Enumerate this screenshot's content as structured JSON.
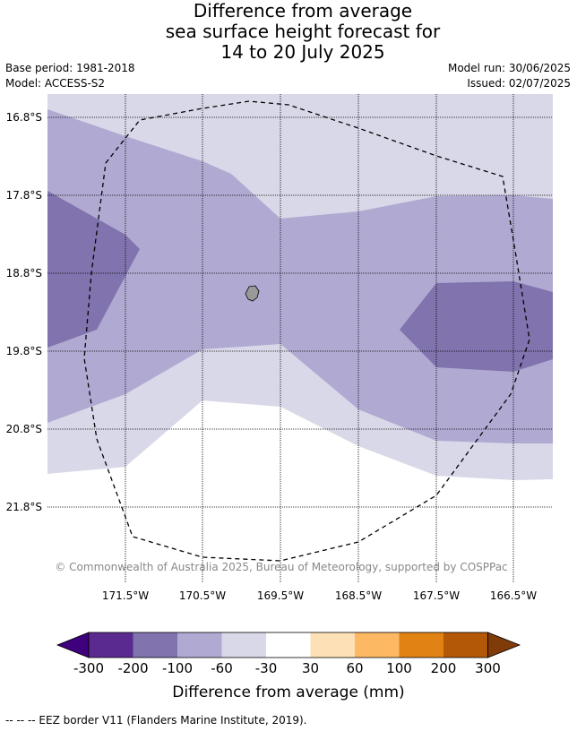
{
  "title": {
    "line1": "Difference from average",
    "line2": "sea surface height forecast for",
    "line3": "14 to 20 July 2025"
  },
  "meta": {
    "base_period": "Base period: 1981-2018",
    "model": "Model: ACCESS-S2",
    "model_run": "Model run: 30/06/2025",
    "issued": "Issued: 02/07/2025"
  },
  "map": {
    "lat_labels": [
      "16.8°S",
      "17.8°S",
      "18.8°S",
      "19.8°S",
      "20.8°S",
      "21.8°S"
    ],
    "lon_labels": [
      "171.5°W",
      "170.5°W",
      "169.5°W",
      "168.5°W",
      "167.5°W",
      "166.5°W"
    ],
    "copyright": "© Commonwealth of Australia 2025, Bureau of Meteorology, supported by COSPPac",
    "colors": {
      "lt_minus30": "#d8d8e8",
      "lt_minus60": "#b0aad2",
      "lt_minus100": "#8073ae",
      "island": "#999999"
    }
  },
  "colorbar": {
    "title": "Difference from average (mm)",
    "ticks": [
      "-300",
      "-200",
      "-100",
      "-60",
      "-30",
      "30",
      "60",
      "100",
      "200",
      "300"
    ],
    "colors": [
      "#3f007d",
      "#5b2a91",
      "#8073ae",
      "#b0aad2",
      "#d8d8e8",
      "#ffffff",
      "#fee0b6",
      "#fdb863",
      "#e08214",
      "#b35806",
      "#7f3b08"
    ]
  },
  "footnote": "--  --  -- EEZ border V11 (Flanders Marine Institute, 2019)."
}
